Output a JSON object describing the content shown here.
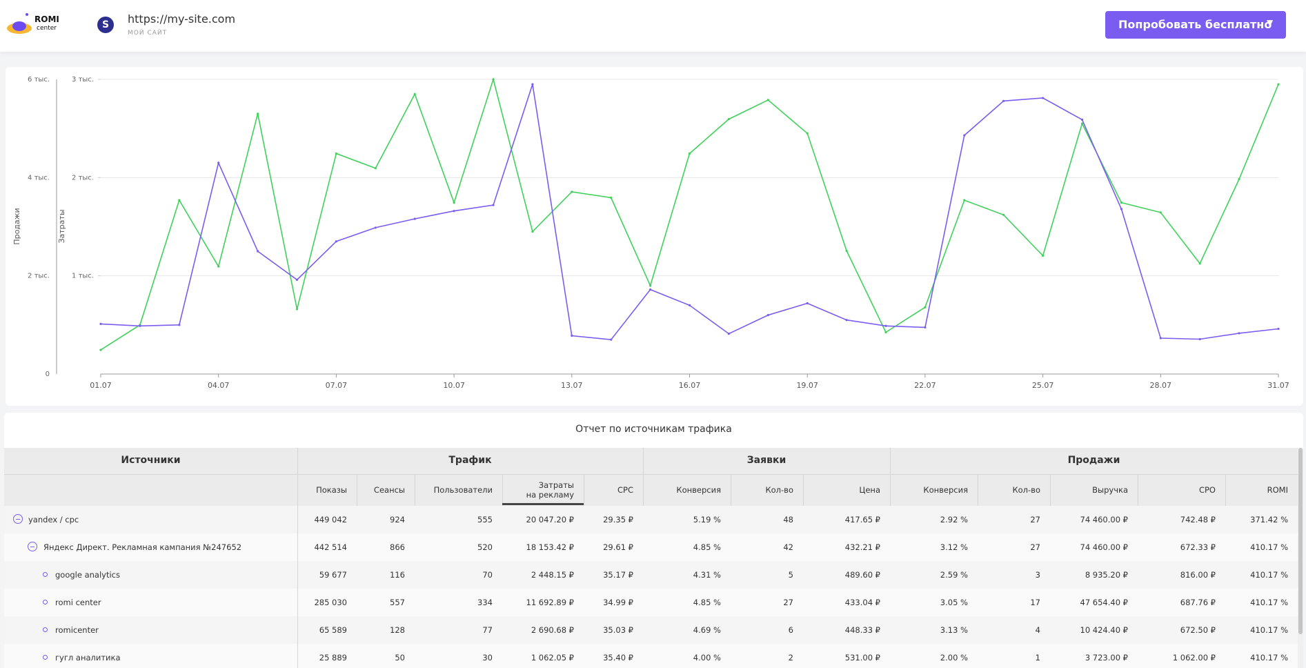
{
  "header": {
    "logo": {
      "title": "ROMI",
      "subtitle": "center"
    },
    "avatar": "S",
    "site_url": "https://my-site.com",
    "site_name": "МОЙ САЙТ",
    "button": "Попробовать бесплатно"
  },
  "chart_data": {
    "type": "line",
    "ylabel": "Продажи",
    "y2label": "Затраты",
    "categories": [
      "01.07",
      null,
      null,
      "04.07",
      null,
      null,
      "07.07",
      null,
      null,
      "10.07",
      null,
      null,
      "13.07",
      null,
      null,
      "16.07",
      null,
      null,
      "19.07",
      null,
      null,
      "22.07",
      null,
      null,
      "25.07",
      null,
      null,
      "28.07",
      null,
      null,
      "31.07"
    ],
    "series": [
      {
        "color": "#3fd15a",
        "values": [
          490,
          1000,
          3540,
          2190,
          5300,
          1320,
          4490,
          4190,
          5700,
          3490,
          6000,
          2900,
          3710,
          3590,
          1800,
          4490,
          5190,
          5580,
          4900,
          2510,
          850,
          1360,
          3540,
          3240,
          2410,
          5100,
          3490,
          3290,
          2250,
          3970,
          5900
        ]
      },
      {
        "color": "#7b5cf0",
        "axis": "y2",
        "values": [
          510,
          490,
          500,
          2150,
          1250,
          960,
          1350,
          1490,
          1580,
          1660,
          1720,
          2950,
          390,
          350,
          860,
          700,
          410,
          600,
          720,
          550,
          490,
          475,
          2430,
          2780,
          2810,
          2590,
          1680,
          365,
          355,
          415,
          460
        ]
      }
    ],
    "ylim": [
      0,
      6000
    ],
    "yticks": [
      0,
      {
        "value": 2000,
        "label": "2 тыс."
      },
      {
        "value": 4000,
        "label": "4 тыс."
      },
      {
        "value": 6000,
        "label": "6 тыс."
      }
    ],
    "y2lim": [
      0,
      3000
    ],
    "y2ticks": [
      {
        "value": 1000,
        "label": "1 тыс."
      },
      {
        "value": 2000,
        "label": "2 тыс."
      },
      {
        "value": 3000,
        "label": "3 тыс."
      }
    ],
    "grid": true
  },
  "table": {
    "title": "Отчет по источникам трафика",
    "groups": [
      "Источники",
      "Трафик",
      "Заявки",
      "Продажи"
    ],
    "columns": [
      "Показы",
      "Сеансы",
      "Пользователи",
      "Затраты\nна рекламу",
      "CPC",
      "Конверсия",
      "Кол-во",
      "Цена",
      "Конверсия",
      "Кол-во",
      "Выручка",
      "CPO",
      "ROMI"
    ],
    "rows": [
      {
        "source": "yandex / cpc",
        "cells": [
          "449 042",
          "924",
          "555",
          "20 047.20 ₽",
          "29.35 ₽",
          "5.19 %",
          "48",
          "417.65 ₽",
          "2.92 %",
          "27",
          "74 460.00 ₽",
          "742.48 ₽",
          "371.42 %"
        ]
      },
      {
        "source": "Яндекс Директ. Рекламная кампания №247652",
        "cells": [
          "442 514",
          "866",
          "520",
          "18 153.42 ₽",
          "29.61 ₽",
          "4.85 %",
          "42",
          "432.21 ₽",
          "3.12 %",
          "27",
          "74 460.00 ₽",
          "672.33 ₽",
          "410.17 %"
        ]
      },
      {
        "source": "google analytics",
        "cells": [
          "59 677",
          "116",
          "70",
          "2 448.15 ₽",
          "35.17 ₽",
          "4.31 %",
          "5",
          "489.60 ₽",
          "2.59 %",
          "3",
          "8 935.20 ₽",
          "816.00 ₽",
          "410.17 %"
        ]
      },
      {
        "source": "romi center",
        "cells": [
          "285 030",
          "557",
          "334",
          "11 692.89 ₽",
          "34.99 ₽",
          "4.85 %",
          "27",
          "433.04 ₽",
          "3.05 %",
          "17",
          "47 654.40 ₽",
          "687.76 ₽",
          "410.17 %"
        ]
      },
      {
        "source": "romicenter",
        "cells": [
          "65 589",
          "128",
          "77",
          "2 690.68 ₽",
          "35.03 ₽",
          "4.69 %",
          "6",
          "448.33 ₽",
          "3.13 %",
          "4",
          "10 424.40 ₽",
          "672.50 ₽",
          "410.17 %"
        ]
      },
      {
        "source": "гугл аналитика",
        "cells": [
          "25 889",
          "50",
          "30",
          "1 062.05 ₽",
          "35.40 ₽",
          "4.00 %",
          "2",
          "531.00 ₽",
          "2.00 %",
          "1",
          "3 723.00 ₽",
          "1 062.00 ₽",
          "410.17 %"
        ]
      }
    ]
  }
}
